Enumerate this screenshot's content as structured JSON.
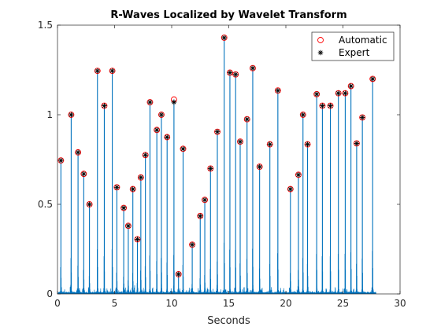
{
  "chart_data": {
    "type": "line",
    "title": "R-Waves Localized by Wavelet Transform",
    "xlabel": "Seconds",
    "ylabel": "",
    "xlim": [
      0,
      30
    ],
    "ylim": [
      0,
      1.5
    ],
    "xticks": [
      0,
      5,
      10,
      15,
      20,
      25,
      30
    ],
    "yticks": [
      0,
      0.5,
      1,
      1.5
    ],
    "xtick_labels": [
      "0",
      "5",
      "10",
      "15",
      "20",
      "25",
      "30"
    ],
    "ytick_labels": [
      "0",
      "0.5",
      "1",
      "1.5"
    ],
    "grid": false,
    "legend_position": "top-right",
    "x_end": 27.9,
    "colors": {
      "signal": "#0072bd",
      "automatic": "#ff0000",
      "expert": "#000000",
      "axes": "#262626"
    },
    "series": [
      {
        "name": "Automatic",
        "marker": "circle",
        "x": [
          0.3,
          1.2,
          1.8,
          2.3,
          2.8,
          3.5,
          4.1,
          4.8,
          5.2,
          5.8,
          6.2,
          6.6,
          7.0,
          7.3,
          7.7,
          8.1,
          8.7,
          9.1,
          9.6,
          10.2,
          10.6,
          11.0,
          11.8,
          12.5,
          12.9,
          13.4,
          14.0,
          14.6,
          15.1,
          15.6,
          16.0,
          16.6,
          17.1,
          17.7,
          18.6,
          19.3,
          20.4,
          21.1,
          21.5,
          21.9,
          22.7,
          23.2,
          23.9,
          24.6,
          25.2,
          25.7,
          26.2,
          26.7,
          27.6
        ],
        "y": [
          0.745,
          1.0,
          0.79,
          0.67,
          0.5,
          1.245,
          1.05,
          1.245,
          0.595,
          0.48,
          0.38,
          0.585,
          0.305,
          0.65,
          0.775,
          1.07,
          0.915,
          1.0,
          0.875,
          1.085,
          0.11,
          0.81,
          0.275,
          0.435,
          0.525,
          0.7,
          0.905,
          1.43,
          1.235,
          1.225,
          0.85,
          0.975,
          1.26,
          0.71,
          0.835,
          1.135,
          0.585,
          0.665,
          1.0,
          0.835,
          1.115,
          1.05,
          1.05,
          1.12,
          1.12,
          1.16,
          0.84,
          0.985,
          1.2
        ]
      },
      {
        "name": "Expert",
        "marker": "asterisk",
        "x": [
          0.3,
          1.2,
          1.8,
          2.3,
          2.8,
          3.5,
          4.1,
          4.8,
          5.2,
          5.8,
          6.2,
          6.6,
          7.0,
          7.3,
          7.7,
          8.1,
          8.7,
          9.1,
          9.6,
          10.2,
          10.6,
          11.0,
          11.8,
          12.5,
          12.9,
          13.4,
          14.0,
          14.6,
          15.1,
          15.6,
          16.0,
          16.6,
          17.1,
          17.7,
          18.6,
          19.3,
          20.4,
          21.1,
          21.5,
          21.9,
          22.7,
          23.2,
          23.9,
          24.6,
          25.2,
          25.7,
          26.2,
          26.7,
          27.6
        ],
        "y": [
          0.745,
          1.0,
          0.79,
          0.67,
          0.5,
          1.245,
          1.05,
          1.245,
          0.595,
          0.48,
          0.38,
          0.585,
          0.305,
          0.65,
          0.775,
          1.07,
          0.915,
          1.0,
          0.875,
          1.07,
          0.11,
          0.81,
          0.275,
          0.435,
          0.525,
          0.7,
          0.905,
          1.43,
          1.235,
          1.225,
          0.85,
          0.975,
          1.26,
          0.71,
          0.835,
          1.135,
          0.585,
          0.665,
          1.0,
          0.835,
          1.115,
          1.05,
          1.05,
          1.12,
          1.12,
          1.16,
          0.84,
          0.985,
          1.2
        ]
      }
    ]
  }
}
